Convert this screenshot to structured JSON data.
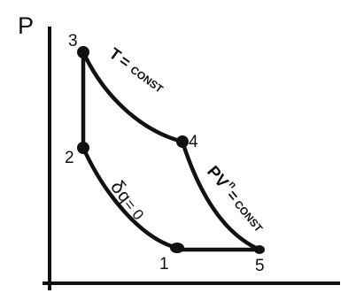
{
  "axes": {
    "y_label": "P"
  },
  "points": {
    "p1": "1",
    "p2": "2",
    "p3": "3",
    "p4": "4",
    "p5": "5"
  },
  "annotations": {
    "isotherm": {
      "main": "T",
      "equals": "=",
      "const": "CONST"
    },
    "polytropic": {
      "pv": "PV",
      "exponent": "n",
      "equals": "=",
      "const": "CONST"
    },
    "adiabatic": {
      "delta": "δ",
      "q": "q",
      "eq": "= 0"
    }
  },
  "colors": {
    "ink": "#111111",
    "background": "#ffffff"
  }
}
